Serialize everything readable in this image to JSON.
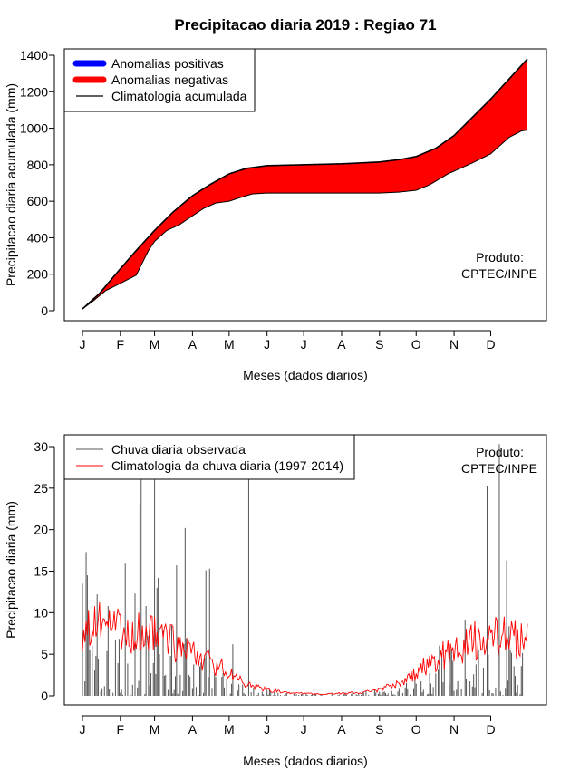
{
  "title": "Precipitacao diaria 2019 : Regiao 71",
  "chart_data": [
    {
      "type": "area",
      "ylabel": "Precipitacao diaria acumulada (mm)",
      "xlabel": "Meses (dados diarios)",
      "ylim": [
        0,
        1400
      ],
      "y_ticks": [
        0,
        200,
        400,
        600,
        800,
        1000,
        1200,
        1400
      ],
      "x_range_days": [
        1,
        365
      ],
      "month_ticks": [
        {
          "label": "J",
          "day": 1
        },
        {
          "label": "F",
          "day": 32
        },
        {
          "label": "M",
          "day": 60
        },
        {
          "label": "A",
          "day": 91
        },
        {
          "label": "M",
          "day": 121
        },
        {
          "label": "J",
          "day": 152
        },
        {
          "label": "J",
          "day": 182
        },
        {
          "label": "A",
          "day": 213
        },
        {
          "label": "S",
          "day": 244
        },
        {
          "label": "O",
          "day": 274
        },
        {
          "label": "N",
          "day": 305
        },
        {
          "label": "D",
          "day": 335
        }
      ],
      "legend": {
        "placement": "top-left",
        "items": [
          {
            "label": "Anomalias positivas",
            "color": "#0000ff",
            "kind": "thick-line"
          },
          {
            "label": "Anomalias negativas",
            "color": "#ff0000",
            "kind": "thick-line"
          },
          {
            "label": "Climatologia acumulada",
            "color": "#000000",
            "kind": "line"
          }
        ]
      },
      "annotation": [
        "Produto:",
        "CPTEC/INPE"
      ],
      "series": [
        {
          "name": "Climatologia acumulada",
          "color": "#000000",
          "points": [
            [
              1,
              10
            ],
            [
              15,
              95
            ],
            [
              32,
              230
            ],
            [
              45,
              330
            ],
            [
              60,
              440
            ],
            [
              75,
              540
            ],
            [
              91,
              630
            ],
            [
              105,
              690
            ],
            [
              121,
              750
            ],
            [
              135,
              780
            ],
            [
              152,
              795
            ],
            [
              182,
              800
            ],
            [
              213,
              805
            ],
            [
              244,
              815
            ],
            [
              260,
              828
            ],
            [
              274,
              845
            ],
            [
              290,
              890
            ],
            [
              305,
              960
            ],
            [
              320,
              1060
            ],
            [
              335,
              1160
            ],
            [
              350,
              1270
            ],
            [
              365,
              1380
            ]
          ]
        },
        {
          "name": "Observada acumulada",
          "color": "#000000",
          "points": [
            [
              1,
              10
            ],
            [
              10,
              55
            ],
            [
              20,
              110
            ],
            [
              32,
              150
            ],
            [
              45,
              195
            ],
            [
              55,
              330
            ],
            [
              60,
              380
            ],
            [
              70,
              440
            ],
            [
              80,
              470
            ],
            [
              91,
              520
            ],
            [
              100,
              560
            ],
            [
              110,
              590
            ],
            [
              121,
              600
            ],
            [
              130,
              620
            ],
            [
              140,
              640
            ],
            [
              152,
              645
            ],
            [
              182,
              645
            ],
            [
              213,
              645
            ],
            [
              244,
              645
            ],
            [
              260,
              650
            ],
            [
              274,
              660
            ],
            [
              285,
              690
            ],
            [
              300,
              750
            ],
            [
              320,
              810
            ],
            [
              335,
              860
            ],
            [
              350,
              950
            ],
            [
              360,
              985
            ],
            [
              365,
              990
            ]
          ]
        }
      ]
    },
    {
      "type": "bar",
      "ylabel": "Precipitacao diaria (mm)",
      "xlabel": "Meses (dados diarios)",
      "ylim": [
        0,
        30
      ],
      "y_ticks": [
        0,
        5,
        10,
        15,
        20,
        25,
        30
      ],
      "x_range_days": [
        1,
        365
      ],
      "legend": {
        "placement": "top-left",
        "items": [
          {
            "label": "Chuva diaria observada",
            "color": "#555555",
            "kind": "line"
          },
          {
            "label": "Climatologia da chuva diaria (1997-2014)",
            "color": "#ff0000",
            "kind": "line"
          }
        ]
      },
      "annotation": [
        "Produto:",
        "CPTEC/INPE"
      ],
      "observed": {
        "name": "Chuva diaria observada",
        "color": "#555555",
        "notable_days": [
          [
            1,
            13.5
          ],
          [
            4,
            17.3
          ],
          [
            5,
            14.5
          ],
          [
            13,
            12.2
          ],
          [
            22,
            10.8
          ],
          [
            36,
            15.9
          ],
          [
            44,
            12.3
          ],
          [
            48,
            23
          ],
          [
            49,
            26
          ],
          [
            53,
            10.8
          ],
          [
            60,
            26
          ],
          [
            62,
            13
          ],
          [
            63,
            14.2
          ],
          [
            67,
            7.8
          ],
          [
            78,
            15.7
          ],
          [
            85,
            20.2
          ],
          [
            102,
            15.1
          ],
          [
            105,
            15.3
          ],
          [
            124,
            6.2
          ],
          [
            137,
            28
          ],
          [
            332,
            25.3
          ],
          [
            342,
            30.3
          ],
          [
            348,
            16.3
          ]
        ]
      },
      "climatology": {
        "name": "Climatologia da chuva diaria (1997-2014)",
        "color": "#ff0000",
        "anchors": [
          [
            1,
            8.5
          ],
          [
            15,
            8.3
          ],
          [
            32,
            8
          ],
          [
            45,
            7.8
          ],
          [
            60,
            7.5
          ],
          [
            75,
            6.3
          ],
          [
            91,
            5.2
          ],
          [
            105,
            4.2
          ],
          [
            121,
            2.7
          ],
          [
            135,
            1.4
          ],
          [
            150,
            0.8
          ],
          [
            165,
            0.4
          ],
          [
            182,
            0.3
          ],
          [
            200,
            0.2
          ],
          [
            213,
            0.3
          ],
          [
            230,
            0.4
          ],
          [
            244,
            0.7
          ],
          [
            260,
            1.6
          ],
          [
            274,
            2.8
          ],
          [
            290,
            4.3
          ],
          [
            305,
            5.6
          ],
          [
            320,
            6.5
          ],
          [
            335,
            7.1
          ],
          [
            350,
            7.2
          ],
          [
            365,
            7
          ]
        ]
      }
    }
  ]
}
